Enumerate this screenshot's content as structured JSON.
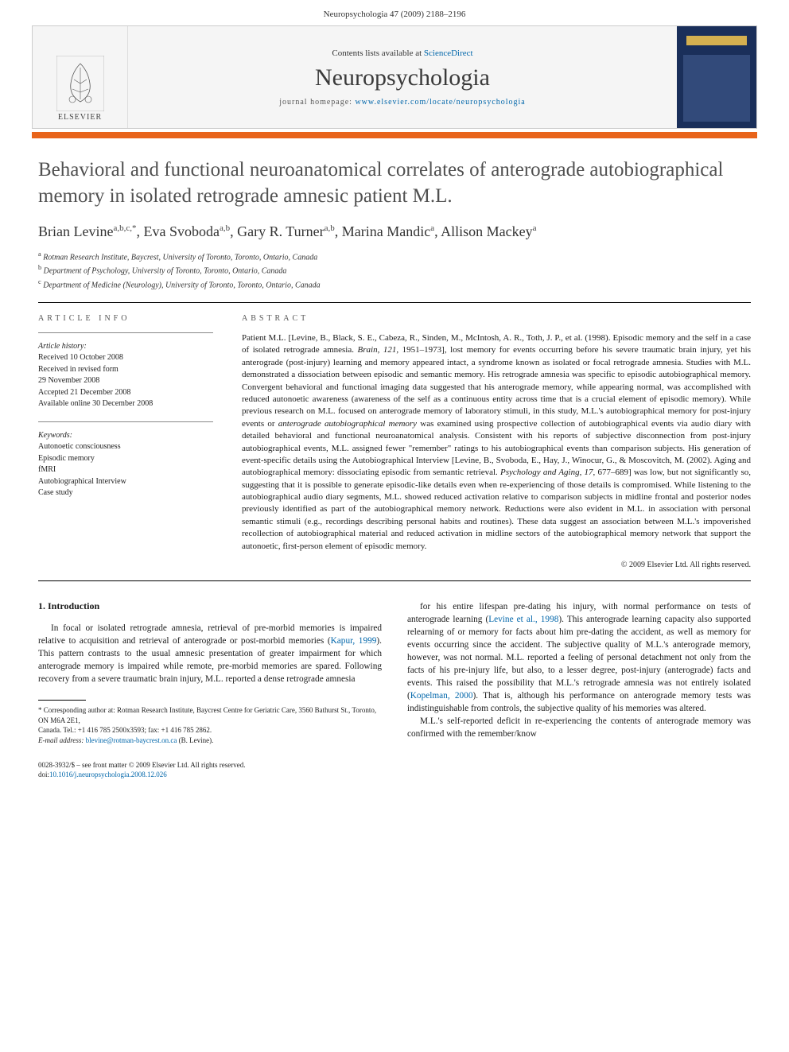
{
  "header": {
    "running": "Neuropsychologia 47 (2009) 2188–2196"
  },
  "banner": {
    "contents_prefix": "Contents lists available at ",
    "contents_link": "ScienceDirect",
    "journal": "Neuropsychologia",
    "homepage_prefix": "journal homepage: ",
    "homepage_url": "www.elsevier.com/locate/neuropsychologia",
    "publisher": "ELSEVIER",
    "cover_label": "NEUROPSYCHOLOGIA"
  },
  "title": "Behavioral and functional neuroanatomical correlates of anterograde autobiographical memory in isolated retrograde amnesic patient M.L.",
  "authors_html": "Brian Levine<sup>a,b,c,*</sup>, Eva Svoboda<sup>a,b</sup>, Gary R. Turner<sup>a,b</sup>, Marina Mandic<sup>a</sup>, Allison Mackey<sup>a</sup>",
  "affiliations": [
    {
      "sup": "a",
      "text": "Rotman Research Institute, Baycrest, University of Toronto, Toronto, Ontario, Canada"
    },
    {
      "sup": "b",
      "text": "Department of Psychology, University of Toronto, Toronto, Ontario, Canada"
    },
    {
      "sup": "c",
      "text": "Department of Medicine (Neurology), University of Toronto, Toronto, Ontario, Canada"
    }
  ],
  "info": {
    "label": "ARTICLE INFO",
    "history_label": "Article history:",
    "history": [
      "Received 10 October 2008",
      "Received in revised form",
      "29 November 2008",
      "Accepted 21 December 2008",
      "Available online 30 December 2008"
    ],
    "keywords_label": "Keywords:",
    "keywords": [
      "Autonoetic consciousness",
      "Episodic memory",
      "fMRI",
      "Autobiographical Interview",
      "Case study"
    ]
  },
  "abstract": {
    "label": "ABSTRACT",
    "text": "Patient M.L. [Levine, B., Black, S. E., Cabeza, R., Sinden, M., McIntosh, A. R., Toth, J. P., et al. (1998). Episodic memory and the self in a case of isolated retrograde amnesia. <em>Brain</em>, <em>121</em>, 1951–1973], lost memory for events occurring before his severe traumatic brain injury, yet his anterograde (post-injury) learning and memory appeared intact, a syndrome known as isolated or focal retrograde amnesia. Studies with M.L. demonstrated a dissociation between episodic and semantic memory. His retrograde amnesia was specific to episodic autobiographical memory. Convergent behavioral and functional imaging data suggested that his anterograde memory, while appearing normal, was accomplished with reduced autonoetic awareness (awareness of the self as a continuous entity across time that is a crucial element of episodic memory). While previous research on M.L. focused on anterograde memory of laboratory stimuli, in this study, M.L.'s autobiographical memory for post-injury events or <em>anterograde autobiographical memory</em> was examined using prospective collection of autobiographical events via audio diary with detailed behavioral and functional neuroanatomical analysis. Consistent with his reports of subjective disconnection from post-injury autobiographical events, M.L. assigned fewer \"remember\" ratings to his autobiographical events than comparison subjects. His generation of event-specific details using the Autobiographical Interview [Levine, B., Svoboda, E., Hay, J., Winocur, G., & Moscovitch, M. (2002). Aging and autobiographical memory: dissociating episodic from semantic retrieval. <em>Psychology and Aging</em>, <em>17</em>, 677–689] was low, but not significantly so, suggesting that it is possible to generate episodic-like details even when re-experiencing of those details is compromised. While listening to the autobiographical audio diary segments, M.L. showed reduced activation relative to comparison subjects in midline frontal and posterior nodes previously identified as part of the autobiographical memory network. Reductions were also evident in M.L. in association with personal semantic stimuli (e.g., recordings describing personal habits and routines). These data suggest an association between M.L.'s impoverished recollection of autobiographical material and reduced activation in midline sectors of the autobiographical memory network that support the autonoetic, first-person element of episodic memory.",
    "copyright": "© 2009 Elsevier Ltd. All rights reserved."
  },
  "body": {
    "heading": "1.  Introduction",
    "col1": "In focal or isolated retrograde amnesia, retrieval of pre-morbid memories is impaired relative to acquisition and retrieval of anterograde or post-morbid memories (<a>Kapur, 1999</a>). This pattern contrasts to the usual amnesic presentation of greater impairment for which anterograde memory is impaired while remote, pre-morbid memories are spared. Following recovery from a severe traumatic brain injury, M.L. reported a dense retrograde amnesia",
    "col2_p1": "for his entire lifespan pre-dating his injury, with normal performance on tests of anterograde learning (<a>Levine et al., 1998</a>). This anterograde learning capacity also supported relearning of or memory for facts about him pre-dating the accident, as well as memory for events occurring since the accident. The subjective quality of M.L.'s anterograde memory, however, was not normal. M.L. reported a feeling of personal detachment not only from the facts of his pre-injury life, but also, to a lesser degree, post-injury (anterograde) facts and events. This raised the possibility that M.L.'s retrograde amnesia was not entirely isolated (<a>Kopelman, 2000</a>). That is, although his performance on anterograde memory tests was indistinguishable from controls, the subjective quality of his memories was altered.",
    "col2_p2": "M.L.'s self-reported deficit in re-experiencing the contents of anterograde memory was confirmed with the remember/know"
  },
  "footnote": {
    "corr": "* Corresponding author at: Rotman Research Institute, Baycrest Centre for Geriatric Care, 3560 Bathurst St., Toronto, ON M6A 2E1,",
    "corr2": "Canada. Tel.: +1 416 785 2500x3593; fax: +1 416 785 2862.",
    "email_label": "E-mail address:",
    "email": "blevine@rotman-baycrest.on.ca",
    "email_suffix": "(B. Levine)."
  },
  "footer": {
    "issn": "0028-3932/$ – see front matter © 2009 Elsevier Ltd. All rights reserved.",
    "doi_label": "doi:",
    "doi": "10.1016/j.neuropsychologia.2008.12.026"
  }
}
